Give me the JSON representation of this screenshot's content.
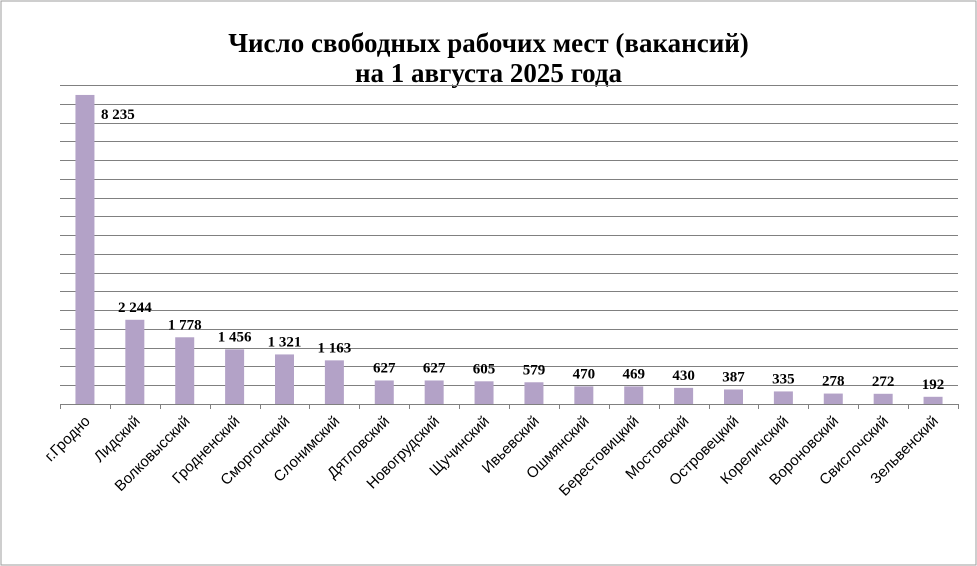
{
  "chart_data": {
    "type": "bar",
    "title": "Число свободных рабочих мест (вакансий)",
    "subtitle": "на 1 августа 2025 года",
    "categories": [
      "г.Гродно",
      "Лидский",
      "Волковысский",
      "Гродненский",
      "Сморгонский",
      "Слонимский",
      "Дятловский",
      "Новогрудский",
      "Щучинский",
      "Ивьевский",
      "Ошмянский",
      "Берестовицкий",
      "Мостовский",
      "Островецкий",
      "Кореличский",
      "Вороновский",
      "Свислочский",
      "Зельвенский"
    ],
    "values": [
      8235,
      2244,
      1778,
      1456,
      1321,
      1163,
      627,
      627,
      605,
      579,
      470,
      469,
      430,
      387,
      335,
      278,
      272,
      192
    ],
    "value_labels": [
      "8 235",
      "2 244",
      "1 778",
      "1 456",
      "1 321",
      "1 163",
      "627",
      "627",
      "605",
      "579",
      "470",
      "469",
      "430",
      "387",
      "335",
      "278",
      "272",
      "192"
    ],
    "ylim": [
      0,
      8500
    ],
    "gridlines": 17,
    "grid": true,
    "bar_color": "#b3a2c7",
    "border_color": "#9d9d9d"
  }
}
